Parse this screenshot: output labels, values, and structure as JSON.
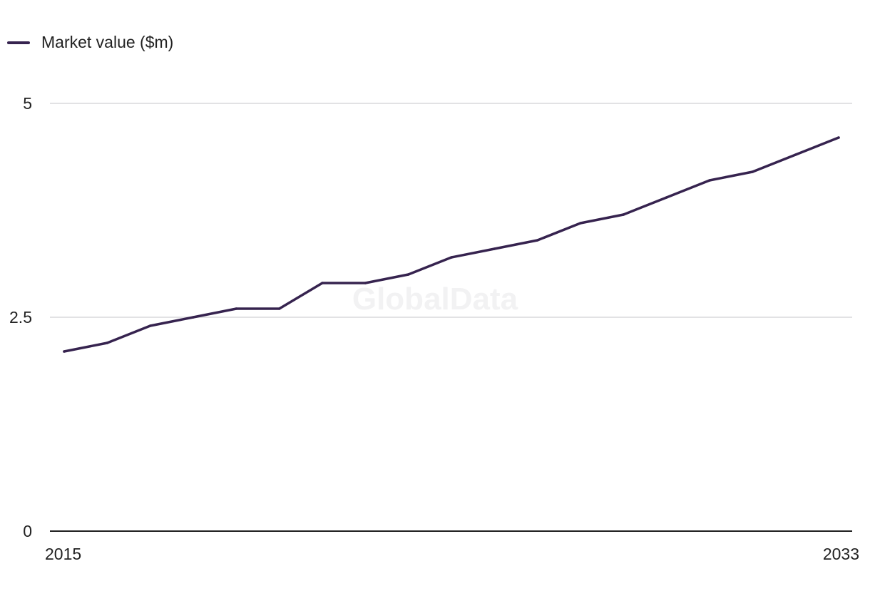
{
  "chart_data": {
    "type": "line",
    "title": "",
    "xlabel": "",
    "ylabel": "",
    "x": [
      2015,
      2016,
      2017,
      2018,
      2019,
      2020,
      2021,
      2022,
      2023,
      2024,
      2025,
      2026,
      2027,
      2028,
      2029,
      2030,
      2031,
      2032,
      2033
    ],
    "series": [
      {
        "name": "Market value ($m)",
        "values": [
          2.1,
          2.2,
          2.4,
          2.5,
          2.6,
          2.6,
          2.9,
          2.9,
          3.0,
          3.2,
          3.3,
          3.4,
          3.6,
          3.7,
          3.9,
          4.1,
          4.2,
          4.4,
          4.6
        ],
        "color": "#36234f"
      }
    ],
    "ylim": [
      0,
      5
    ],
    "y_ticks": [
      "0",
      "2.5",
      "5"
    ],
    "x_tick_labels": [
      "2015",
      "2033"
    ],
    "grid": true,
    "legend_position": "top-left",
    "watermark": "GlobalData"
  }
}
